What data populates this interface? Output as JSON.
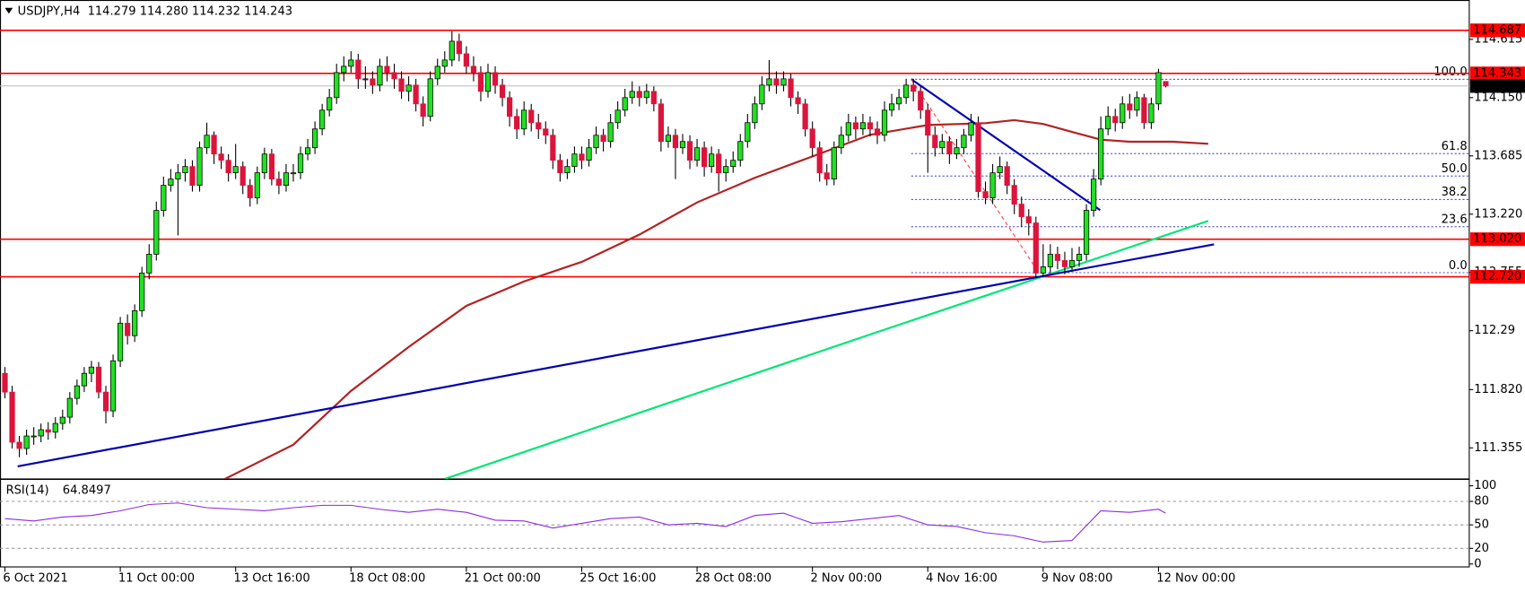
{
  "chart_data": {
    "type": "candlestick",
    "header": "USDJPY,H4  114.279 114.280 114.232 114.243",
    "up_color": "#22e022",
    "down_color": "#dc143c",
    "wick_color": "#000000",
    "xlim": [
      -0.68,
      203.1
    ],
    "ylim": [
      111.107,
      114.929
    ],
    "xticks": [
      {
        "value": 0,
        "label": "6 Oct 2021"
      },
      {
        "value": 16,
        "label": "11 Oct 00:00"
      },
      {
        "value": 32,
        "label": "13 Oct 16:00"
      },
      {
        "value": 48,
        "label": "18 Oct 08:00"
      },
      {
        "value": 64,
        "label": "21 Oct 00:00"
      },
      {
        "value": 80,
        "label": "25 Oct 16:00"
      },
      {
        "value": 96,
        "label": "28 Oct 08:00"
      },
      {
        "value": 112,
        "label": "2 Nov 00:00"
      },
      {
        "value": 128,
        "label": "4 Nov 16:00"
      },
      {
        "value": 144,
        "label": "9 Nov 08:00"
      },
      {
        "value": 160,
        "label": "12 Nov 00:00"
      }
    ],
    "yticks": [
      114.615,
      {
        "value": 114.15,
        "label": "114.150"
      },
      113.685,
      {
        "value": 113.22,
        "label": "113.220"
      },
      112.755,
      112.29,
      {
        "value": 111.82,
        "label": "111.820"
      },
      111.355
    ],
    "levels": [
      {
        "value": 114.687,
        "color": "#ff0000"
      },
      {
        "value": 114.343,
        "color": "#ff0000"
      },
      {
        "value": 114.243,
        "color": "#000000",
        "line_color": "#c0c0c0"
      },
      {
        "value": 113.02,
        "label": "113.020",
        "color": "#ff0000"
      },
      {
        "value": 112.72,
        "label": "112.720",
        "color": "#ff0000"
      }
    ],
    "ohlc": [
      [
        111.95,
        112.0,
        111.75,
        111.8
      ],
      [
        111.8,
        111.85,
        111.35,
        111.4
      ],
      [
        111.4,
        111.45,
        111.28,
        111.35
      ],
      [
        111.35,
        111.5,
        111.3,
        111.45
      ],
      [
        111.45,
        111.52,
        111.38,
        111.45
      ],
      [
        111.45,
        111.55,
        111.4,
        111.5
      ],
      [
        111.5,
        111.56,
        111.42,
        111.48
      ],
      [
        111.48,
        111.6,
        111.43,
        111.55
      ],
      [
        111.55,
        111.66,
        111.5,
        111.6
      ],
      [
        111.6,
        111.8,
        111.55,
        111.75
      ],
      [
        111.75,
        111.9,
        111.7,
        111.85
      ],
      [
        111.85,
        112.0,
        111.8,
        111.95
      ],
      [
        111.95,
        112.05,
        111.88,
        112.0
      ],
      [
        112.0,
        112.04,
        111.75,
        111.8
      ],
      [
        111.8,
        111.85,
        111.55,
        111.65
      ],
      [
        111.65,
        112.1,
        111.6,
        112.05
      ],
      [
        112.05,
        112.4,
        112.0,
        112.35
      ],
      [
        112.35,
        112.42,
        112.18,
        112.25
      ],
      [
        112.25,
        112.5,
        112.2,
        112.45
      ],
      [
        112.45,
        112.8,
        112.4,
        112.75
      ],
      [
        112.75,
        112.98,
        112.7,
        112.9
      ],
      [
        112.9,
        113.32,
        112.85,
        113.25
      ],
      [
        113.25,
        113.52,
        113.2,
        113.45
      ],
      [
        113.45,
        113.58,
        113.4,
        113.5
      ],
      [
        113.5,
        113.62,
        113.05,
        113.55
      ],
      [
        113.55,
        113.66,
        113.48,
        113.6
      ],
      [
        113.6,
        113.65,
        113.4,
        113.45
      ],
      [
        113.45,
        113.8,
        113.4,
        113.75
      ],
      [
        113.75,
        113.95,
        113.7,
        113.85
      ],
      [
        113.85,
        113.88,
        113.62,
        113.7
      ],
      [
        113.7,
        113.76,
        113.58,
        113.65
      ],
      [
        113.65,
        113.7,
        113.48,
        113.55
      ],
      [
        113.55,
        113.78,
        113.5,
        113.6
      ],
      [
        113.6,
        113.64,
        113.38,
        113.45
      ],
      [
        113.45,
        113.5,
        113.28,
        113.35
      ],
      [
        113.35,
        113.6,
        113.3,
        113.55
      ],
      [
        113.55,
        113.75,
        113.5,
        113.7
      ],
      [
        113.7,
        113.74,
        113.45,
        113.5
      ],
      [
        113.5,
        113.56,
        113.38,
        113.45
      ],
      [
        113.45,
        113.62,
        113.4,
        113.55
      ],
      [
        113.55,
        113.62,
        113.48,
        113.55
      ],
      [
        113.55,
        113.76,
        113.5,
        113.7
      ],
      [
        113.7,
        113.82,
        113.65,
        113.75
      ],
      [
        113.75,
        113.96,
        113.7,
        113.9
      ],
      [
        113.9,
        114.1,
        113.85,
        114.05
      ],
      [
        114.05,
        114.22,
        114.0,
        114.15
      ],
      [
        114.15,
        114.42,
        114.1,
        114.35
      ],
      [
        114.35,
        114.48,
        114.28,
        114.4
      ],
      [
        114.4,
        114.52,
        114.35,
        114.45
      ],
      [
        114.45,
        114.5,
        114.22,
        114.3
      ],
      [
        114.3,
        114.4,
        114.22,
        114.3
      ],
      [
        114.3,
        114.36,
        114.18,
        114.25
      ],
      [
        114.25,
        114.46,
        114.2,
        114.4
      ],
      [
        114.4,
        114.48,
        114.28,
        114.35
      ],
      [
        114.35,
        114.42,
        114.22,
        114.3
      ],
      [
        114.3,
        114.36,
        114.14,
        114.2
      ],
      [
        114.2,
        114.32,
        114.12,
        114.25
      ],
      [
        114.25,
        114.3,
        114.04,
        114.1
      ],
      [
        114.1,
        114.16,
        113.92,
        114.0
      ],
      [
        114.0,
        114.36,
        113.96,
        114.3
      ],
      [
        114.3,
        114.46,
        114.25,
        114.4
      ],
      [
        114.4,
        114.52,
        114.35,
        114.45
      ],
      [
        114.45,
        114.68,
        114.4,
        114.6
      ],
      [
        114.6,
        114.66,
        114.44,
        114.5
      ],
      [
        114.5,
        114.56,
        114.34,
        114.4
      ],
      [
        114.4,
        114.48,
        114.28,
        114.35
      ],
      [
        114.35,
        114.4,
        114.12,
        114.2
      ],
      [
        114.2,
        114.42,
        114.15,
        114.35
      ],
      [
        114.35,
        114.4,
        114.18,
        114.25
      ],
      [
        114.25,
        114.3,
        114.08,
        114.15
      ],
      [
        114.15,
        114.2,
        113.92,
        114.0
      ],
      [
        114.0,
        114.06,
        113.82,
        113.9
      ],
      [
        113.9,
        114.12,
        113.85,
        114.05
      ],
      [
        114.05,
        114.1,
        113.88,
        113.95
      ],
      [
        113.95,
        114.02,
        113.82,
        113.9
      ],
      [
        113.9,
        113.96,
        113.78,
        113.85
      ],
      [
        113.85,
        113.9,
        113.58,
        113.65
      ],
      [
        113.65,
        113.7,
        113.48,
        113.55
      ],
      [
        113.55,
        113.66,
        113.5,
        113.6
      ],
      [
        113.6,
        113.76,
        113.55,
        113.7
      ],
      [
        113.7,
        113.76,
        113.58,
        113.65
      ],
      [
        113.65,
        113.82,
        113.6,
        113.75
      ],
      [
        113.75,
        113.92,
        113.7,
        113.85
      ],
      [
        113.85,
        113.9,
        113.72,
        113.8
      ],
      [
        113.8,
        114.02,
        113.75,
        113.95
      ],
      [
        113.95,
        114.12,
        113.9,
        114.05
      ],
      [
        114.05,
        114.22,
        114.0,
        114.15
      ],
      [
        114.15,
        114.28,
        114.1,
        114.2
      ],
      [
        114.2,
        114.24,
        114.08,
        114.15
      ],
      [
        114.15,
        114.26,
        114.1,
        114.2
      ],
      [
        114.2,
        114.24,
        114.04,
        114.1
      ],
      [
        114.1,
        114.14,
        113.72,
        113.8
      ],
      [
        113.8,
        113.92,
        113.75,
        113.85
      ],
      [
        113.85,
        113.9,
        113.5,
        113.75
      ],
      [
        113.75,
        113.86,
        113.7,
        113.8
      ],
      [
        113.8,
        113.85,
        113.58,
        113.65
      ],
      [
        113.65,
        113.82,
        113.6,
        113.75
      ],
      [
        113.75,
        113.8,
        113.52,
        113.6
      ],
      [
        113.6,
        113.76,
        113.55,
        113.7
      ],
      [
        113.7,
        113.74,
        113.4,
        113.55
      ],
      [
        113.55,
        113.66,
        113.48,
        113.6
      ],
      [
        113.6,
        113.72,
        113.55,
        113.65
      ],
      [
        113.65,
        113.86,
        113.6,
        113.8
      ],
      [
        113.8,
        114.02,
        113.75,
        113.95
      ],
      [
        113.95,
        114.16,
        113.9,
        114.1
      ],
      [
        114.1,
        114.32,
        114.05,
        114.25
      ],
      [
        114.25,
        114.45,
        114.2,
        114.3
      ],
      [
        114.3,
        114.36,
        114.18,
        114.25
      ],
      [
        114.25,
        114.36,
        114.2,
        114.3
      ],
      [
        114.3,
        114.34,
        114.08,
        114.15
      ],
      [
        114.15,
        114.2,
        114.02,
        114.1
      ],
      [
        114.1,
        114.14,
        113.84,
        113.9
      ],
      [
        113.9,
        113.96,
        113.68,
        113.75
      ],
      [
        113.75,
        113.8,
        113.48,
        113.55
      ],
      [
        113.55,
        113.62,
        113.45,
        113.5
      ],
      [
        113.5,
        113.8,
        113.45,
        113.75
      ],
      [
        113.75,
        113.92,
        113.7,
        113.85
      ],
      [
        113.85,
        114.02,
        113.8,
        113.95
      ],
      [
        113.95,
        114.0,
        113.82,
        113.9
      ],
      [
        113.9,
        114.02,
        113.85,
        113.95
      ],
      [
        113.95,
        114.0,
        113.84,
        113.9
      ],
      [
        113.9,
        113.96,
        113.78,
        113.85
      ],
      [
        113.85,
        114.12,
        113.8,
        114.05
      ],
      [
        114.05,
        114.18,
        114.0,
        114.1
      ],
      [
        114.1,
        114.22,
        114.05,
        114.15
      ],
      [
        114.15,
        114.3,
        114.1,
        114.25
      ],
      [
        114.25,
        114.3,
        114.12,
        114.2
      ],
      [
        114.2,
        114.24,
        113.98,
        114.05
      ],
      [
        114.05,
        114.1,
        113.55,
        113.85
      ],
      [
        113.85,
        113.92,
        113.68,
        113.75
      ],
      [
        113.75,
        113.86,
        113.7,
        113.8
      ],
      [
        113.8,
        113.84,
        113.62,
        113.7
      ],
      [
        113.7,
        113.82,
        113.66,
        113.75
      ],
      [
        113.75,
        113.9,
        113.7,
        113.85
      ],
      [
        113.85,
        114.02,
        113.8,
        113.95
      ],
      [
        113.95,
        114.0,
        113.35,
        113.4
      ],
      [
        113.4,
        113.48,
        113.3,
        113.35
      ],
      [
        113.35,
        113.62,
        113.3,
        113.55
      ],
      [
        113.55,
        113.68,
        113.5,
        113.6
      ],
      [
        113.6,
        113.64,
        113.38,
        113.45
      ],
      [
        113.45,
        113.5,
        113.22,
        113.3
      ],
      [
        113.3,
        113.36,
        113.12,
        113.2
      ],
      [
        113.2,
        113.26,
        113.05,
        113.15
      ],
      [
        113.15,
        113.2,
        112.72,
        112.75
      ],
      [
        112.75,
        112.98,
        112.72,
        112.8
      ],
      [
        112.8,
        112.98,
        112.75,
        112.9
      ],
      [
        112.9,
        112.96,
        112.78,
        112.85
      ],
      [
        112.85,
        112.92,
        112.74,
        112.8
      ],
      [
        112.8,
        112.95,
        112.76,
        112.85
      ],
      [
        112.85,
        112.96,
        112.8,
        112.9
      ],
      [
        112.9,
        113.3,
        112.85,
        113.25
      ],
      [
        113.25,
        113.58,
        113.2,
        113.5
      ],
      [
        113.5,
        114.0,
        113.45,
        113.9
      ],
      [
        113.9,
        114.08,
        113.85,
        114.0
      ],
      [
        114.0,
        114.06,
        113.88,
        113.95
      ],
      [
        113.95,
        114.16,
        113.9,
        114.1
      ],
      [
        114.1,
        114.18,
        113.98,
        114.05
      ],
      [
        114.05,
        114.2,
        114.0,
        114.15
      ],
      [
        114.15,
        114.18,
        113.9,
        113.95
      ],
      [
        113.95,
        114.15,
        113.9,
        114.1
      ],
      [
        114.1,
        114.38,
        114.05,
        114.35
      ],
      [
        114.279,
        114.28,
        114.232,
        114.243
      ]
    ],
    "overlays": [
      {
        "color": "#b22222",
        "dash": false,
        "x": [
          30.5,
          40,
          48,
          56,
          64,
          72,
          80,
          88,
          96,
          104,
          112,
          120,
          128,
          136,
          140,
          144,
          148,
          152,
          156,
          162,
          166.9
        ],
        "values": [
          111.107,
          111.38,
          111.809,
          112.16,
          112.488,
          112.683,
          112.839,
          113.057,
          113.314,
          113.51,
          113.681,
          113.853,
          113.931,
          113.946,
          113.97,
          113.94,
          113.876,
          113.814,
          113.798,
          113.798,
          113.782
        ]
      },
      {
        "color": "#00e676",
        "dash": false,
        "x": [
          61,
          120,
          166.9
        ],
        "values": [
          111.107,
          112.26,
          113.166
        ]
      },
      {
        "color": "#0000b0",
        "dash": false,
        "x": [
          1.76,
          167.7
        ],
        "values": [
          111.208,
          112.979
        ]
      },
      {
        "color": "#0000b0",
        "dash": false,
        "x": [
          125.7,
          151.9
        ],
        "values": [
          114.297,
          113.252
        ]
      },
      {
        "color": "#ff4040",
        "dash": true,
        "x": [
          125.7,
          143.4
        ],
        "values": [
          114.297,
          112.753
        ]
      }
    ],
    "fibo": {
      "color": "#2020c0",
      "start": 125.7,
      "levels": [
        {
          "ratio": {
            "value": 100,
            "label": "100.0"
          },
          "price": 114.297
        },
        {
          "ratio": 61.8,
          "price": 113.704
        },
        {
          "ratio": {
            "value": 50,
            "label": "50.0"
          },
          "price": 113.525
        },
        {
          "ratio": 38.2,
          "price": 113.338
        },
        {
          "ratio": 23.6,
          "price": 113.119
        },
        {
          "ratio": {
            "value": 0,
            "label": "0.0"
          },
          "price": 112.753
        }
      ]
    },
    "rsi": {
      "name": "RSI(14)",
      "color": "#8a2be2",
      "ylim": [
        -3.75,
        108.75
      ],
      "yticks": [
        100,
        80,
        50,
        20,
        0
      ],
      "x": [
        0,
        4,
        8,
        12,
        16,
        20,
        24,
        28,
        32,
        36,
        40,
        44,
        48,
        52,
        56,
        60,
        64,
        68,
        72,
        76,
        80,
        84,
        88,
        92,
        96,
        100,
        104,
        108,
        112,
        116,
        120,
        124,
        128,
        132,
        136,
        140,
        144,
        148,
        152,
        156,
        160,
        161
      ],
      "values": [
        58,
        55,
        60,
        62,
        68,
        76,
        78,
        72,
        70,
        68,
        72,
        75,
        75,
        70,
        66,
        70,
        66,
        56,
        55,
        46,
        52,
        58,
        60,
        50,
        52,
        48,
        62,
        65,
        52,
        54,
        58,
        62,
        50,
        48,
        40,
        36,
        28,
        30,
        68,
        66,
        70,
        64.8497
      ]
    }
  }
}
